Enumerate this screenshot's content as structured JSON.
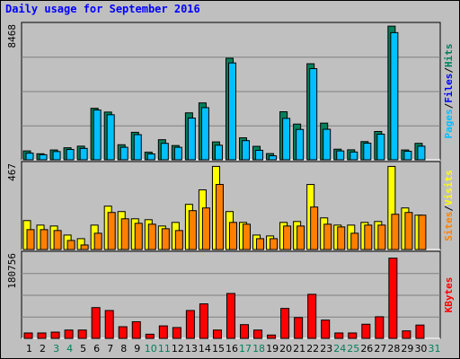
{
  "chart_data": {
    "type": "bar",
    "title": "Daily usage for September 2016",
    "colors": {
      "background": "#bfbfbf",
      "plot_bg": "#c0c0c0",
      "hits": "#00805c",
      "files": "#0080ff",
      "files_highlight": "#00c0ff",
      "pages": "#00c0ff",
      "visits": "#ffff00",
      "sites": "#ff8000",
      "kbytes": "#ff0000",
      "weekday_label": "#000000",
      "weekend_label": "#00805c",
      "label_pages": "#00c0ff",
      "label_files": "#0000ff",
      "label_hits": "#00805c",
      "label_sites": "#ff8000",
      "label_visits": "#ffff00",
      "label_kbytes": "#ff0000"
    },
    "days": [
      1,
      2,
      3,
      4,
      5,
      6,
      7,
      8,
      9,
      10,
      11,
      12,
      13,
      14,
      15,
      16,
      17,
      18,
      19,
      20,
      21,
      22,
      23,
      24,
      25,
      26,
      27,
      28,
      29,
      30,
      31
    ],
    "weekend_days": [
      3,
      4,
      10,
      11,
      17,
      18,
      24,
      25,
      31
    ],
    "panels": [
      {
        "name": "hits-files-pages",
        "ymax_label": "8468",
        "ymax": 8468,
        "axis_labels": [
          "Pages",
          "Files",
          "Hits"
        ],
        "series": [
          {
            "name": "Hits",
            "values": [
              560,
              380,
              620,
              760,
              860,
              3260,
              3020,
              950,
              1740,
              480,
              1270,
              900,
              2970,
              3600,
              1130,
              6430,
              1390,
              850,
              390,
              3040,
              2260,
              6080,
              2320,
              670,
              630,
              1150,
              1790,
              8460,
              620,
              1040,
              0
            ]
          },
          {
            "name": "Files",
            "values": [
              420,
              320,
              520,
              650,
              720,
              3150,
              2850,
              790,
              1590,
              370,
              1040,
              790,
              2640,
              3300,
              920,
              6130,
              1210,
              600,
              250,
              2620,
              1920,
              5770,
              1930,
              560,
              490,
              1050,
              1620,
              8050,
              540,
              860,
              0
            ]
          }
        ]
      },
      {
        "name": "visits-sites",
        "ymax_label": "467",
        "ymax": 467,
        "axis_labels": [
          "Sites",
          "Visits"
        ],
        "series": [
          {
            "name": "Visits",
            "values": [
              160,
              135,
              130,
              80,
              60,
              135,
              240,
              210,
              170,
              165,
              130,
              150,
              250,
              330,
              460,
              210,
              150,
              80,
              75,
              150,
              155,
              360,
              175,
              135,
              135,
              150,
              155,
              460,
              230,
              190,
              0
            ]
          },
          {
            "name": "Sites",
            "values": [
              110,
              110,
              105,
              50,
              25,
              90,
              205,
              170,
              145,
              140,
              115,
              105,
              215,
              230,
              360,
              150,
              140,
              60,
              60,
              130,
              130,
              235,
              140,
              125,
              90,
              135,
              135,
              195,
              205,
              190,
              0
            ]
          }
        ]
      },
      {
        "name": "kbytes",
        "ymax_label": "180756",
        "ymax": 180756,
        "axis_labels": [
          "KBytes"
        ],
        "series": [
          {
            "name": "KBytes",
            "values": [
              11700,
              11700,
              13500,
              18000,
              18000,
              66600,
              60300,
              25200,
              36000,
              9000,
              27000,
              23400,
              60300,
              74700,
              18000,
              97200,
              29700,
              18000,
              7200,
              64800,
              45000,
              95400,
              39600,
              11700,
              11700,
              30600,
              46800,
              173700,
              16200,
              28800,
              0
            ]
          }
        ]
      }
    ]
  }
}
